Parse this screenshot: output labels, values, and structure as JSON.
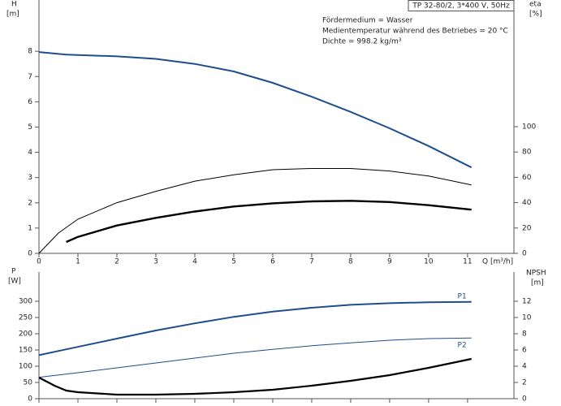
{
  "chart_data": [
    {
      "type": "line",
      "title": "TP 32-80/2, 3*400 V, 50Hz",
      "annotations": [
        "Fördermedium = Wasser",
        "Medientemperatur während des Betriebes = 20 °C",
        "Dichte = 998.2 kg/m³"
      ],
      "x_label": "Q [m³/h]",
      "y_label": "H",
      "y_unit": "[m]",
      "y2_label": "eta",
      "y2_unit": "[%]",
      "xlim": [
        0,
        12.19
      ],
      "xticks": [
        0,
        1,
        2,
        3,
        4,
        5,
        6,
        7,
        8,
        9,
        10,
        11
      ],
      "ylim": [
        0,
        10.03
      ],
      "yticks": [
        0,
        1,
        2,
        3,
        4,
        5,
        6,
        7,
        8
      ],
      "y2lim": [
        0,
        200
      ],
      "y2ticks": [
        0,
        20,
        40,
        60,
        80,
        100
      ],
      "series": [
        {
          "color": "#1f4e8c",
          "linewidth": 2,
          "x": [
            0,
            0.7,
            2,
            3,
            4,
            5,
            6,
            7,
            8,
            9,
            10,
            11.1
          ],
          "values": [
            7.97,
            7.87,
            7.8,
            7.7,
            7.5,
            7.2,
            6.75,
            6.2,
            5.6,
            4.95,
            4.25,
            3.4
          ]
        },
        {
          "color": "#000000",
          "linewidth": 1,
          "axis": "y2",
          "x": [
            0,
            0.5,
            1,
            2,
            3,
            4,
            5,
            6,
            7,
            8,
            9,
            10,
            11.1
          ],
          "values": [
            0,
            16,
            27,
            40,
            49,
            57,
            62,
            66,
            67,
            67,
            65,
            61,
            54
          ]
        },
        {
          "color": "#000000",
          "linewidth": 2.4,
          "axis": "y2",
          "x": [
            0.7,
            1,
            2,
            3,
            4,
            5,
            6,
            7,
            8,
            9,
            10,
            11.1
          ],
          "values": [
            9,
            13,
            22,
            28,
            33,
            37,
            39.5,
            41,
            41.5,
            40.5,
            38,
            34.5
          ]
        }
      ]
    },
    {
      "type": "line",
      "y_label": "P",
      "y_unit": "[W]",
      "y2_label": "NPSH",
      "y2_unit": "[m]",
      "xlim": [
        0,
        12.19
      ],
      "xticks": [
        0,
        1,
        2,
        3,
        4,
        5,
        6,
        7,
        8,
        9,
        10,
        11
      ],
      "ylim": [
        0,
        390
      ],
      "yticks": [
        0,
        50,
        100,
        150,
        200,
        250,
        300
      ],
      "y2lim": [
        0,
        15.6
      ],
      "y2ticks": [
        0,
        2,
        4,
        6,
        8,
        10,
        12
      ],
      "series": [
        {
          "name": "P1",
          "color": "#1f4e8c",
          "linewidth": 2,
          "x": [
            0,
            0.7,
            2,
            3,
            4,
            5,
            6,
            7,
            8,
            9,
            10,
            11.1
          ],
          "values": [
            134,
            152,
            185,
            210,
            232,
            252,
            268,
            280,
            289,
            294,
            297,
            298
          ]
        },
        {
          "name": "P2",
          "color": "#1f4e8c",
          "linewidth": 1,
          "x": [
            0,
            1,
            2,
            3,
            4,
            5,
            6,
            7,
            8,
            9,
            10,
            11.1
          ],
          "values": [
            66,
            80,
            95,
            110,
            125,
            140,
            152,
            163,
            172,
            180,
            185,
            187
          ]
        },
        {
          "color": "#000000",
          "linewidth": 2.2,
          "axis": "y2",
          "x": [
            0,
            0.4,
            0.7,
            1,
            2,
            3,
            4,
            5,
            6,
            7,
            8,
            9,
            10,
            11.1
          ],
          "values": [
            2.6,
            1.6,
            1.0,
            0.8,
            0.5,
            0.5,
            0.6,
            0.8,
            1.1,
            1.6,
            2.2,
            2.9,
            3.8,
            4.9
          ]
        }
      ]
    }
  ]
}
